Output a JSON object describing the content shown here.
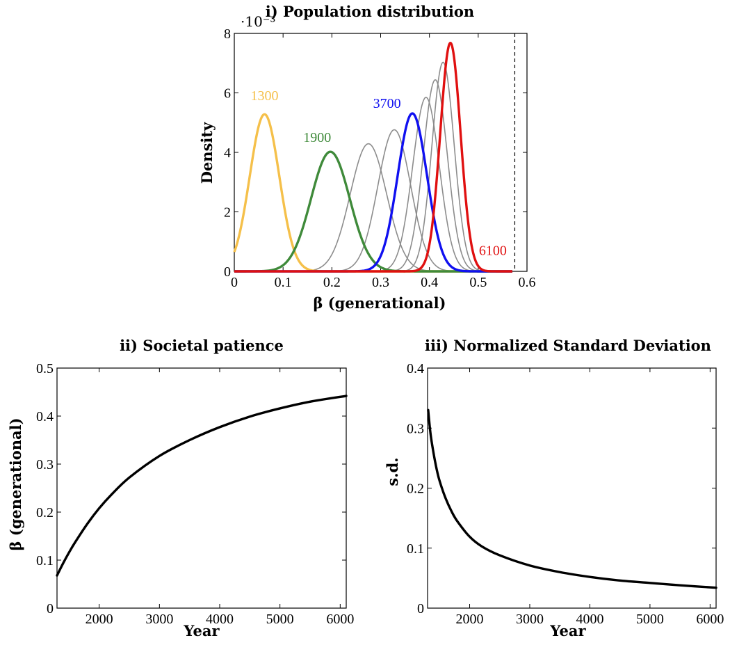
{
  "chart_data": [
    {
      "type": "line",
      "title": "i) Population distribution",
      "xlabel": "β (generational)",
      "ylabel": "Density",
      "y_exponent_label": "·10⁻³",
      "xlim": [
        0,
        0.6
      ],
      "ylim": [
        0,
        8
      ],
      "xticks": [
        "0",
        "0.1",
        "0.2",
        "0.3",
        "0.4",
        "0.5",
        "0.6"
      ],
      "yticks": [
        "0",
        "2",
        "4",
        "6",
        "8"
      ],
      "reference_line": {
        "x": 0.575,
        "style": "dashed"
      },
      "series": [
        {
          "name": "1300",
          "color": "#f5c04a",
          "highlight": true,
          "mean": 0.062,
          "sd": 0.0303,
          "peak": 5.28,
          "label_pos": [
            0.062,
            5.75
          ]
        },
        {
          "name": "1900",
          "color": "#3f8a3a",
          "highlight": true,
          "mean": 0.197,
          "sd": 0.0398,
          "peak": 4.02,
          "label_pos": [
            0.17,
            4.35
          ]
        },
        {
          "color": "#8c8c8c",
          "highlight": false,
          "mean": 0.275,
          "sd": 0.0373,
          "peak": 4.29
        },
        {
          "color": "#8c8c8c",
          "highlight": false,
          "mean": 0.328,
          "sd": 0.0336,
          "peak": 4.76
        },
        {
          "name": "3700",
          "color": "#1010f0",
          "highlight": true,
          "mean": 0.365,
          "sd": 0.0301,
          "peak": 5.31,
          "label_pos": [
            0.313,
            5.5
          ]
        },
        {
          "color": "#8c8c8c",
          "highlight": false,
          "mean": 0.393,
          "sd": 0.0273,
          "peak": 5.85
        },
        {
          "color": "#8c8c8c",
          "highlight": false,
          "mean": 0.412,
          "sd": 0.0248,
          "peak": 6.44
        },
        {
          "color": "#8c8c8c",
          "highlight": false,
          "mean": 0.428,
          "sd": 0.0227,
          "peak": 7.03
        },
        {
          "name": "6100",
          "color": "#e01010",
          "highlight": true,
          "mean": 0.443,
          "sd": 0.0208,
          "peak": 7.68,
          "label_pos": [
            0.53,
            0.55
          ]
        }
      ]
    },
    {
      "type": "line",
      "title": "ii) Societal patience",
      "xlabel": "Year",
      "ylabel": "β (generational)",
      "xlim": [
        1300,
        6100
      ],
      "ylim": [
        0,
        0.5
      ],
      "xticks": [
        "2000",
        "3000",
        "4000",
        "5000",
        "6000"
      ],
      "yticks": [
        "0",
        "0.1",
        "0.2",
        "0.3",
        "0.4",
        "0.5"
      ],
      "x": [
        1300,
        1400,
        1500,
        1600,
        1800,
        2000,
        2200,
        2500,
        3000,
        3500,
        4000,
        4500,
        5000,
        5500,
        6100
      ],
      "values": [
        0.068,
        0.093,
        0.116,
        0.137,
        0.175,
        0.208,
        0.236,
        0.272,
        0.317,
        0.35,
        0.377,
        0.399,
        0.416,
        0.43,
        0.442
      ]
    },
    {
      "type": "line",
      "title": "iii) Normalized Standard Deviation",
      "xlabel": "Year",
      "ylabel": "s.d.",
      "xlim": [
        1300,
        6100
      ],
      "ylim": [
        0,
        0.4
      ],
      "xticks": [
        "2000",
        "3000",
        "4000",
        "5000",
        "6000"
      ],
      "yticks": [
        "0",
        "0.1",
        "0.2",
        "0.3",
        "0.4"
      ],
      "x": [
        1310,
        1350,
        1400,
        1450,
        1500,
        1600,
        1700,
        1800,
        2000,
        2200,
        2500,
        3000,
        3500,
        4000,
        4500,
        5000,
        5500,
        6100
      ],
      "values": [
        0.33,
        0.29,
        0.258,
        0.232,
        0.212,
        0.183,
        0.161,
        0.144,
        0.119,
        0.103,
        0.088,
        0.071,
        0.06,
        0.052,
        0.046,
        0.042,
        0.038,
        0.034
      ]
    }
  ]
}
